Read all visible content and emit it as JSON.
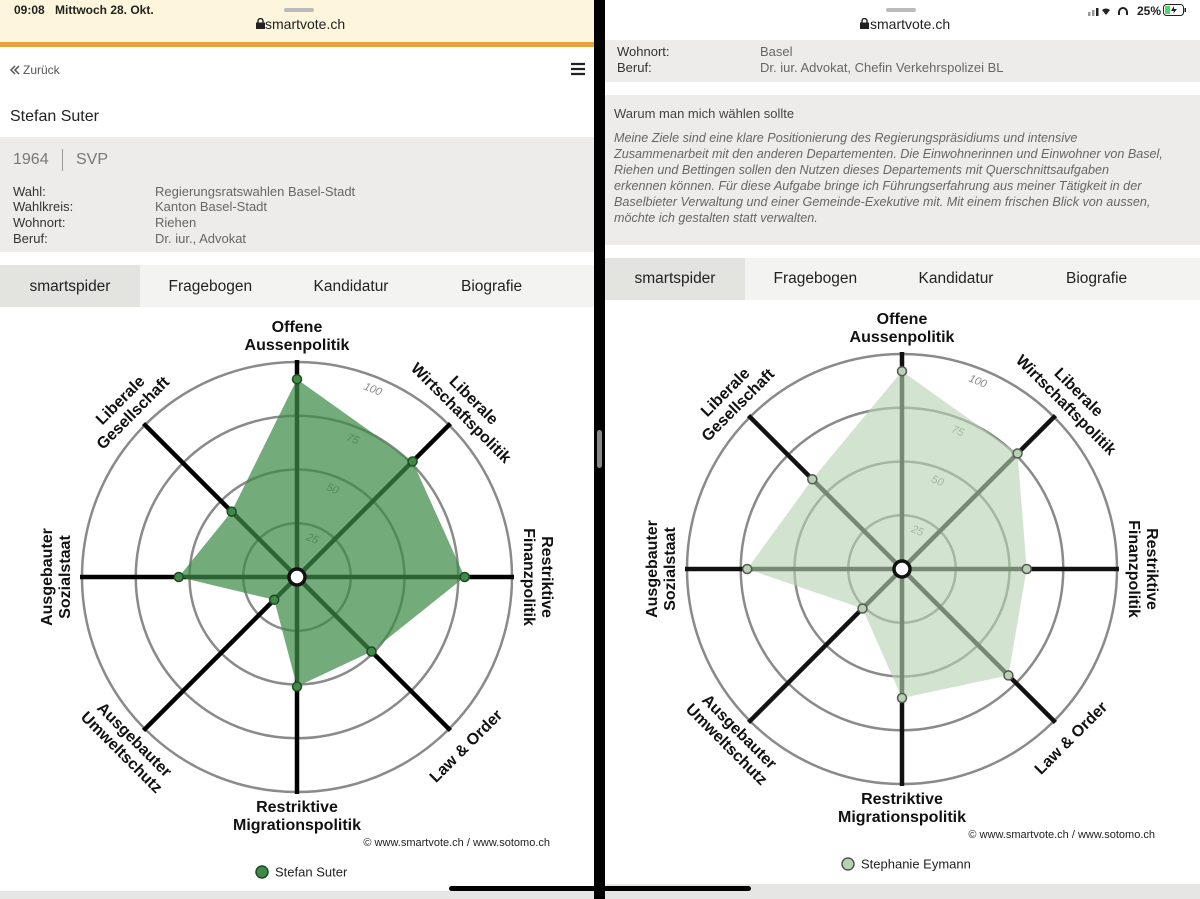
{
  "status_bar": {
    "time": "09:08",
    "date": "Mittwoch 28. Okt.",
    "battery": "25%"
  },
  "left_panel": {
    "url": "smartvote.ch",
    "back": "Zurück",
    "name": "Stefan Suter",
    "year": "1964",
    "party": "SVP",
    "details": [
      [
        "Wahl:",
        "Regierungsratswahlen Basel-Stadt"
      ],
      [
        "Wahlkreis:",
        "Kanton Basel-Stadt"
      ],
      [
        "Wohnort:",
        "Riehen"
      ],
      [
        "Beruf:",
        "Dr. iur., Advokat"
      ]
    ],
    "tabs": [
      "smartspider",
      "Fragebogen",
      "Kandidatur",
      "Biografie"
    ],
    "copyright": "© www.smartvote.ch / www.sotomo.ch"
  },
  "right_panel": {
    "url": "smartvote.ch",
    "details": [
      [
        "Wohnort:",
        "Basel"
      ],
      [
        "Beruf:",
        "Dr. iur. Advokat, Chefin Verkehrspolizei BL"
      ]
    ],
    "statement_title": "Warum man mich wählen sollte",
    "statement": [
      "Meine Ziele sind eine klare Positionierung des Regierungspräsidiums und intensive",
      "Zusammenarbeit mit den anderen Departementen. Die Einwohnerinnen und Einwohner von Basel,",
      "Riehen und Bettingen sollen den Nutzen dieses Departements mit Querschnittsaufgaben",
      "erkennen können. Für diese Aufgabe bringe ich Führungserfahrung aus meiner Tätigkeit in der",
      "Baselbieter Verwaltung und einer Gemeinde-Exekutive mit. Mit einem frischen Blick von aussen,",
      "möchte ich gestalten statt verwalten."
    ],
    "tabs": [
      "smartspider",
      "Fragebogen",
      "Kandidatur",
      "Biografie"
    ],
    "copyright": "© www.smartvote.ch / www.sotomo.ch"
  },
  "chart_data": [
    {
      "type": "radar",
      "categories": [
        [
          "Offene",
          "Aussenpolitik"
        ],
        [
          "Liberale",
          "Wirtschaftspolitik"
        ],
        [
          "Restriktive",
          "Finanzpolitik"
        ],
        [
          "Law & Order"
        ],
        [
          "Restriktive",
          "Migrationspolitik"
        ],
        [
          "Ausgebauter",
          "Umweltschutz"
        ],
        [
          "Ausgebauter",
          "Sozialstaat"
        ],
        [
          "Liberale",
          "Gesellschaft"
        ]
      ],
      "series": [
        {
          "name": "Stefan Suter",
          "color": "#3f8a47",
          "values": [
            92,
            76,
            78,
            49,
            51,
            15,
            55,
            43
          ]
        }
      ],
      "rlim": [
        0,
        100
      ],
      "rticks": [
        25,
        50,
        75,
        100
      ]
    },
    {
      "type": "radar",
      "categories": [
        [
          "Offene",
          "Aussenpolitik"
        ],
        [
          "Liberale",
          "Wirtschaftspolitik"
        ],
        [
          "Restriktive",
          "Finanzpolitik"
        ],
        [
          "Law & Order"
        ],
        [
          "Restriktive",
          "Migrationspolitik"
        ],
        [
          "Ausgebauter",
          "Umweltschutz"
        ],
        [
          "Ausgebauter",
          "Sozialstaat"
        ],
        [
          "Liberale",
          "Gesellschaft"
        ]
      ],
      "series": [
        {
          "name": "Stephanie Eymann",
          "color": "#b7d2b2",
          "values": [
            92,
            76,
            58,
            70,
            60,
            26,
            72,
            59
          ]
        }
      ],
      "rlim": [
        0,
        100
      ],
      "rticks": [
        25,
        50,
        75,
        100
      ]
    }
  ]
}
